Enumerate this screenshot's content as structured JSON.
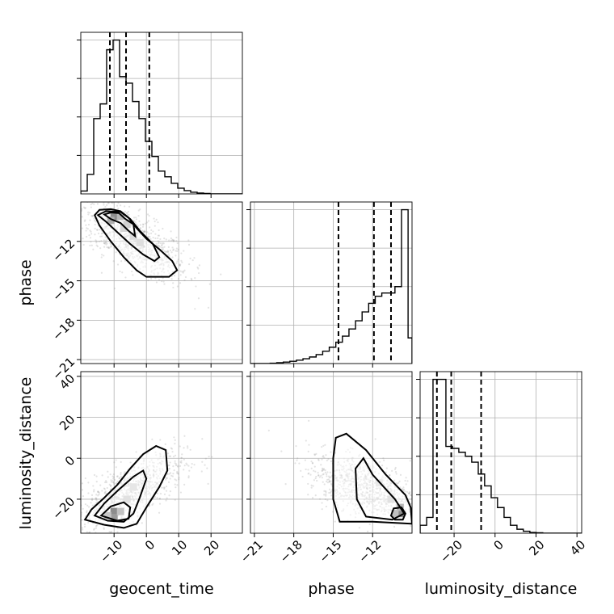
{
  "chart_data": {
    "type": "corner",
    "parameters": [
      "geocent_time",
      "phase",
      "luminosity_distance"
    ],
    "axis_labels": {
      "geocent_time": "geocent_time",
      "phase": "phase",
      "luminosity_distance": "luminosity_distance"
    },
    "ranges": {
      "geocent_time": [
        -20.3,
        29.7
      ],
      "phase": [
        -21.3,
        -9.0
      ],
      "luminosity_distance": [
        -36.6,
        42.3
      ]
    },
    "ticks": {
      "geocent_time": [
        -10,
        0,
        10,
        20
      ],
      "phase": [
        -21,
        -18,
        -15,
        -12
      ],
      "luminosity_distance": [
        -20,
        0,
        20,
        40
      ]
    },
    "grid": true,
    "quantiles": {
      "geocent_time": [
        -11.3,
        -6.3,
        0.9
      ],
      "phase": [
        -14.6,
        -11.9,
        -10.6
      ],
      "luminosity_distance": [
        -28.4,
        -21.4,
        -6.8
      ]
    },
    "histograms": {
      "geocent_time": {
        "bin_edges": [
          -20.3,
          -18.3,
          -16.3,
          -14.3,
          -12.3,
          -10.3,
          -8.3,
          -6.3,
          -4.3,
          -2.3,
          -0.3,
          1.7,
          3.7,
          5.7,
          7.7,
          9.7,
          11.7,
          13.7,
          15.7,
          17.7,
          19.7,
          21.7,
          23.7,
          25.7,
          27.7,
          29.7
        ],
        "counts": [
          0.7,
          4.8,
          18.5,
          22.1,
          35.4,
          37.8,
          28.8,
          27.2,
          22.7,
          18.5,
          12.9,
          9.2,
          5.6,
          4.2,
          2.6,
          1.4,
          0.8,
          0.4,
          0.2,
          0.1,
          0,
          0,
          0,
          0,
          0
        ]
      },
      "phase": {
        "bin_edges": [
          -21.3,
          -20.8,
          -20.3,
          -19.8,
          -19.3,
          -18.8,
          -18.3,
          -17.8,
          -17.3,
          -16.8,
          -16.3,
          -15.8,
          -15.3,
          -14.8,
          -14.3,
          -13.8,
          -13.3,
          -12.8,
          -12.3,
          -11.8,
          -11.3,
          -10.8,
          -10.3,
          -9.8,
          -9.3,
          -9.0
        ],
        "counts": [
          0,
          0,
          0,
          0.2,
          0.5,
          0.9,
          1.4,
          2.1,
          3.0,
          4.1,
          5.6,
          7.7,
          10.2,
          13.3,
          17.1,
          21.6,
          26.7,
          32.2,
          37.6,
          42.0,
          44.0,
          44.0,
          48.0,
          96.0,
          16.0
        ]
      },
      "luminosity_distance": {
        "bin_edges": [
          -36.6,
          -33.4,
          -30.3,
          -27.1,
          -24.0,
          -20.8,
          -17.7,
          -14.5,
          -11.4,
          -8.2,
          -5.1,
          -1.9,
          1.2,
          4.4,
          7.5,
          10.7,
          13.8,
          17.0,
          20.1,
          23.3,
          26.4,
          29.6,
          32.7,
          35.9,
          39.0,
          42.3
        ],
        "counts": [
          2.0,
          4.0,
          39.0,
          39.0,
          22.0,
          21.5,
          20.5,
          19.5,
          18.0,
          15.0,
          12.0,
          9.0,
          6.5,
          4.0,
          2.0,
          1.0,
          0.5,
          0.2,
          0.1,
          0,
          0,
          0,
          0,
          0,
          0
        ]
      }
    },
    "pairs": [
      {
        "x": "geocent_time",
        "y": "phase",
        "peak": [
          -10,
          -10.1
        ],
        "density_squares": [
          [
            -10,
            -10.1,
            1.0
          ],
          [
            -8,
            -10.1,
            0.6
          ],
          [
            -11,
            -10.4,
            0.7
          ],
          [
            -6,
            -10.7,
            0.35
          ],
          [
            -4,
            -11.6,
            0.25
          ],
          [
            -2,
            -12.1,
            0.22
          ],
          [
            -7,
            -11.0,
            0.3
          ]
        ],
        "contours": [
          [
            [
              -16.0,
              -10.0
            ],
            [
              -14.5,
              -9.6
            ],
            [
              -11.0,
              -9.55
            ],
            [
              -8.0,
              -9.7
            ],
            [
              -5.5,
              -10.2
            ],
            [
              -3.0,
              -11.0
            ],
            [
              0.0,
              -11.8
            ],
            [
              4.0,
              -12.6
            ],
            [
              8.0,
              -13.5
            ],
            [
              9.5,
              -14.2
            ],
            [
              7.0,
              -14.7
            ],
            [
              0.0,
              -14.7
            ],
            [
              -3.0,
              -14.2
            ],
            [
              -7.0,
              -13.2
            ],
            [
              -11.0,
              -12.0
            ],
            [
              -14.5,
              -10.8
            ],
            [
              -16.0,
              -10.0
            ]
          ],
          [
            [
              -15.0,
              -10.0
            ],
            [
              -12.5,
              -9.7
            ],
            [
              -8.0,
              -9.75
            ],
            [
              -5.0,
              -10.3
            ],
            [
              -2.0,
              -11.2
            ],
            [
              2.0,
              -12.2
            ],
            [
              4.0,
              -13.2
            ],
            [
              2.5,
              -13.5
            ],
            [
              -1.0,
              -13.0
            ],
            [
              -5.0,
              -12.2
            ],
            [
              -9.0,
              -11.3
            ],
            [
              -12.5,
              -10.5
            ],
            [
              -15.0,
              -10.0
            ]
          ],
          [
            [
              -13.0,
              -9.95
            ],
            [
              -11.0,
              -9.8
            ],
            [
              -8.5,
              -9.85
            ],
            [
              -6.5,
              -10.3
            ],
            [
              -4.0,
              -10.7
            ],
            [
              -3.5,
              -11.6
            ],
            [
              -5.5,
              -11.2
            ],
            [
              -8.0,
              -10.6
            ],
            [
              -11.0,
              -10.3
            ],
            [
              -13.0,
              -9.95
            ]
          ]
        ]
      },
      {
        "x": "geocent_time",
        "y": "luminosity_distance",
        "peak": [
          -10,
          -26
        ],
        "density_squares": [
          [
            -10,
            -26,
            1.0
          ],
          [
            -10,
            -29,
            0.85
          ],
          [
            -8,
            -26,
            0.5
          ],
          [
            -12,
            -28,
            0.45
          ],
          [
            -6,
            -20,
            0.2
          ],
          [
            -4,
            -14,
            0.15
          ]
        ],
        "contours": [
          [
            [
              -19.0,
              -30.0
            ],
            [
              -17.0,
              -25.0
            ],
            [
              -13.5,
              -20.0
            ],
            [
              -9.0,
              -13.0
            ],
            [
              -5.0,
              -5.0
            ],
            [
              -1.0,
              2.0
            ],
            [
              3.0,
              6.0
            ],
            [
              6.0,
              4.0
            ],
            [
              6.5,
              -6.0
            ],
            [
              4.0,
              -14.0
            ],
            [
              0.0,
              -24.0
            ],
            [
              -3.0,
              -32.0
            ],
            [
              -7.0,
              -34.0
            ],
            [
              -13.0,
              -32.5
            ],
            [
              -19.0,
              -30.0
            ]
          ],
          [
            [
              -16.0,
              -28.0
            ],
            [
              -13.0,
              -22.0
            ],
            [
              -9.0,
              -16.0
            ],
            [
              -4.0,
              -9.0
            ],
            [
              -1.0,
              -6.0
            ],
            [
              0.0,
              -10.0
            ],
            [
              -2.0,
              -19.0
            ],
            [
              -4.0,
              -27.0
            ],
            [
              -7.0,
              -31.0
            ],
            [
              -12.0,
              -30.5
            ],
            [
              -16.0,
              -28.0
            ]
          ],
          [
            [
              -14.0,
              -28.0
            ],
            [
              -11.0,
              -23.5
            ],
            [
              -7.0,
              -21.5
            ],
            [
              -5.0,
              -24.0
            ],
            [
              -5.5,
              -29.5
            ],
            [
              -9.0,
              -30.5
            ],
            [
              -14.0,
              -28.0
            ]
          ]
        ]
      },
      {
        "x": "phase",
        "y": "luminosity_distance",
        "peak": [
          -9.9,
          -27
        ],
        "density_squares": [
          [
            -9.9,
            -27,
            1.0
          ],
          [
            -9.9,
            -24,
            0.6
          ],
          [
            -10.3,
            -27,
            0.5
          ],
          [
            -10.6,
            -20,
            0.2
          ],
          [
            -11.5,
            -12,
            0.12
          ]
        ],
        "contours": [
          [
            [
              -14.5,
              -31.0
            ],
            [
              -15.0,
              -20.0
            ],
            [
              -15.0,
              0.0
            ],
            [
              -14.8,
              10.0
            ],
            [
              -14.0,
              12.0
            ],
            [
              -12.5,
              4.0
            ],
            [
              -11.0,
              -8.0
            ],
            [
              -9.5,
              -18.0
            ],
            [
              -9.1,
              -24.0
            ],
            [
              -9.0,
              -32.0
            ],
            [
              -12.0,
              -31.0
            ],
            [
              -14.5,
              -31.0
            ]
          ],
          [
            [
              -12.5,
              -28.5
            ],
            [
              -13.2,
              -20.0
            ],
            [
              -13.3,
              -5.0
            ],
            [
              -12.7,
              0.0
            ],
            [
              -12.0,
              -8.0
            ],
            [
              -10.3,
              -20.0
            ],
            [
              -9.6,
              -27.0
            ],
            [
              -10.5,
              -30.0
            ],
            [
              -12.5,
              -28.5
            ]
          ],
          [
            [
              -10.6,
              -28.0
            ],
            [
              -10.4,
              -24.5
            ],
            [
              -9.8,
              -24.0
            ],
            [
              -9.5,
              -27.0
            ],
            [
              -9.7,
              -30.0
            ],
            [
              -10.3,
              -30.0
            ],
            [
              -10.6,
              -28.0
            ]
          ]
        ]
      }
    ]
  }
}
